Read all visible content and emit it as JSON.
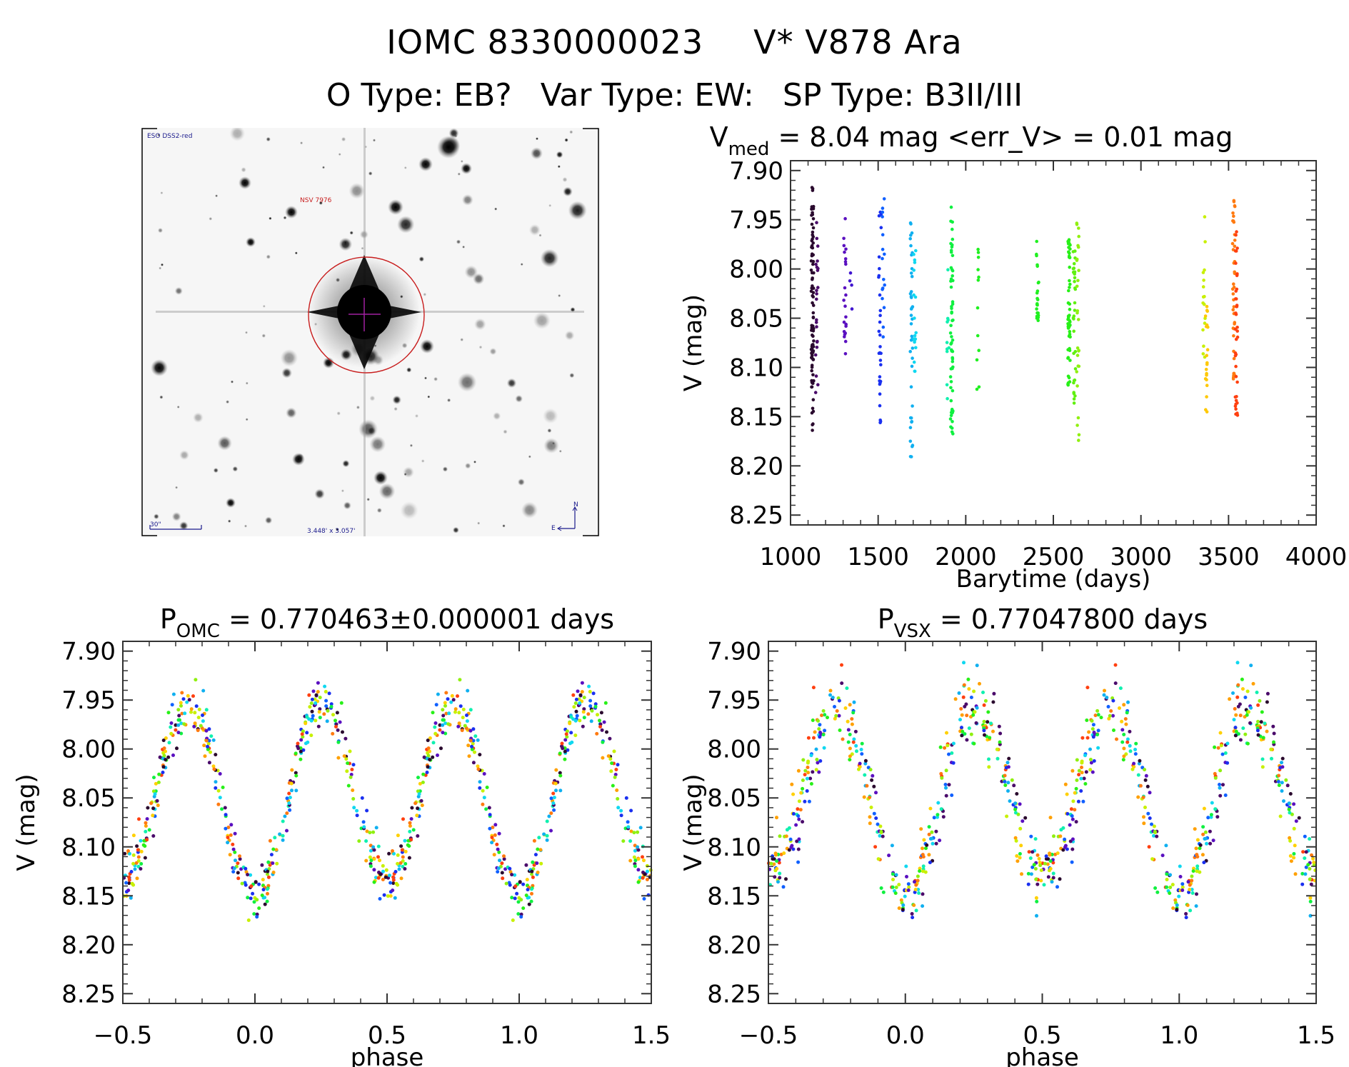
{
  "header": {
    "object_id": "IOMC 8330000023",
    "object_name": "V* V878 Ara",
    "o_type": "O Type: EB?",
    "var_type": "Var Type: EW:",
    "sp_type": "SP Type: B3II/III"
  },
  "finder_chart": {
    "survey_label": "ESO DSS2-red",
    "target_label": "NSV 7976",
    "scale_label": "30\"",
    "fov_label": "3.448' x 3.057'",
    "compass_north": "N",
    "compass_east": "E",
    "colors": {
      "text": "#1a1a8c",
      "target": "#c81e1e",
      "crosshair": "#a020a0"
    }
  },
  "chart_data": [
    {
      "id": "lightcurve",
      "type": "scatter",
      "title": "V_med = 8.04 mag <err_V> = 0.01 mag",
      "title_parts": {
        "main": "V",
        "sub": "med",
        "rest": " = 8.04 mag <err_V> = 0.01 mag"
      },
      "xlabel": "Barytime (days)",
      "ylabel": "V (mag)",
      "xlim": [
        1000,
        4000
      ],
      "ylim": [
        8.26,
        7.89
      ],
      "y_inverted": true,
      "xticks": [
        1000,
        1500,
        2000,
        2500,
        3000,
        3500,
        4000
      ],
      "xtick_labels": [
        "1000",
        "1500",
        "2000",
        "2500",
        "3000",
        "3500",
        "4000"
      ],
      "yticks": [
        7.9,
        7.95,
        8.0,
        8.05,
        8.1,
        8.15,
        8.2,
        8.25
      ],
      "ytick_labels": [
        "7.90",
        "7.95",
        "8.00",
        "8.05",
        "8.10",
        "8.15",
        "8.20",
        "8.25"
      ],
      "grid": false,
      "color_scale": "time-ordered rainbow (dark purple → red)",
      "groups": [
        {
          "t": 1125,
          "color": "#2a0a2e",
          "vmin": 7.915,
          "vmax": 8.165,
          "n": 90
        },
        {
          "t": 1150,
          "color": "#4a0a6a",
          "vmin": 7.945,
          "vmax": 8.13,
          "n": 22
        },
        {
          "t": 1310,
          "color": "#5a10c0",
          "vmin": 7.945,
          "vmax": 8.1,
          "n": 22
        },
        {
          "t": 1345,
          "color": "#4015d0",
          "vmin": 8.0,
          "vmax": 8.065,
          "n": 4
        },
        {
          "t": 1510,
          "color": "#1a30f0",
          "vmin": 7.935,
          "vmax": 8.16,
          "n": 30
        },
        {
          "t": 1530,
          "color": "#1060ff",
          "vmin": 7.925,
          "vmax": 8.07,
          "n": 16
        },
        {
          "t": 1690,
          "color": "#10b0f0",
          "vmin": 7.95,
          "vmax": 8.2,
          "n": 40
        },
        {
          "t": 1710,
          "color": "#10d8f0",
          "vmin": 7.96,
          "vmax": 8.11,
          "n": 18
        },
        {
          "t": 1900,
          "color": "#10f0b0",
          "vmin": 8.0,
          "vmax": 8.14,
          "n": 10
        },
        {
          "t": 1920,
          "color": "#10f040",
          "vmin": 7.935,
          "vmax": 8.17,
          "n": 60
        },
        {
          "t": 2070,
          "color": "#20f020",
          "vmin": 7.965,
          "vmax": 8.135,
          "n": 12
        },
        {
          "t": 2410,
          "color": "#20f020",
          "vmin": 7.965,
          "vmax": 8.055,
          "n": 22
        },
        {
          "t": 2590,
          "color": "#28f018",
          "vmin": 7.97,
          "vmax": 8.135,
          "n": 50
        },
        {
          "t": 2620,
          "color": "#60f010",
          "vmin": 7.97,
          "vmax": 8.14,
          "n": 30
        },
        {
          "t": 2640,
          "color": "#90f010",
          "vmin": 7.95,
          "vmax": 8.175,
          "n": 26
        },
        {
          "t": 3360,
          "color": "#c8f000",
          "vmin": 7.94,
          "vmax": 8.095,
          "n": 16
        },
        {
          "t": 3375,
          "color": "#ffc800",
          "vmin": 8.035,
          "vmax": 8.15,
          "n": 20
        },
        {
          "t": 3530,
          "color": "#ff7a10",
          "vmin": 7.93,
          "vmax": 8.125,
          "n": 40
        },
        {
          "t": 3545,
          "color": "#ff4010",
          "vmin": 7.945,
          "vmax": 8.155,
          "n": 40
        }
      ]
    },
    {
      "id": "phase-omc",
      "type": "scatter",
      "title": "P_OMC = 0.770463±0.000001 days",
      "title_parts": {
        "main": "P",
        "sub": "OMC",
        "rest": " = 0.770463±0.000001 days"
      },
      "xlabel": "phase",
      "ylabel": "V (mag)",
      "xlim": [
        -0.5,
        1.5
      ],
      "ylim": [
        8.26,
        7.89
      ],
      "y_inverted": true,
      "xticks": [
        -0.5,
        0.0,
        0.5,
        1.0,
        1.5
      ],
      "xtick_labels": [
        "−0.5",
        "0.0",
        "0.5",
        "1.0",
        "1.5"
      ],
      "yticks": [
        7.9,
        7.95,
        8.0,
        8.05,
        8.1,
        8.15,
        8.2,
        8.25
      ],
      "ytick_labels": [
        "7.90",
        "7.95",
        "8.00",
        "8.05",
        "8.10",
        "8.15",
        "8.20",
        "8.25"
      ],
      "grid": false,
      "model": {
        "description": "EW eclipsing binary: primary minimum at phase 0.0 (≈8.15), secondary minimum at 0.5 (≈8.13), maxima ≈7.95 at phases 0.25 and 0.75",
        "max_mag": 7.955,
        "primary_min_mag": 8.15,
        "secondary_min_mag": 8.13,
        "scatter_mag": 0.022,
        "points_per_cycle": 420
      }
    },
    {
      "id": "phase-vsx",
      "type": "scatter",
      "title": "P_VSX = 0.77047800 days",
      "title_parts": {
        "main": "P",
        "sub": "VSX",
        "rest": " = 0.77047800 days"
      },
      "xlabel": "phase",
      "ylabel": "V (mag)",
      "xlim": [
        -0.5,
        1.5
      ],
      "ylim": [
        8.26,
        7.89
      ],
      "y_inverted": true,
      "xticks": [
        -0.5,
        0.0,
        0.5,
        1.0,
        1.5
      ],
      "xtick_labels": [
        "−0.5",
        "0.0",
        "0.5",
        "1.0",
        "1.5"
      ],
      "yticks": [
        7.9,
        7.95,
        8.0,
        8.05,
        8.1,
        8.15,
        8.2,
        8.25
      ],
      "ytick_labels": [
        "7.90",
        "7.95",
        "8.00",
        "8.05",
        "8.10",
        "8.15",
        "8.20",
        "8.25"
      ],
      "grid": false,
      "model": {
        "description": "Same light curve folded with VSX period; slightly more phase drift between epochs",
        "max_mag": 7.955,
        "primary_min_mag": 8.15,
        "secondary_min_mag": 8.13,
        "scatter_mag": 0.028,
        "points_per_cycle": 420
      }
    }
  ],
  "palette": [
    "#2a0a2e",
    "#4a0a6a",
    "#5a10c0",
    "#1a30f0",
    "#1060ff",
    "#10b0f0",
    "#10d8f0",
    "#10f0b0",
    "#10f040",
    "#28f018",
    "#90f010",
    "#c8f000",
    "#ffd000",
    "#ffa000",
    "#ff7a10",
    "#ff4010"
  ]
}
